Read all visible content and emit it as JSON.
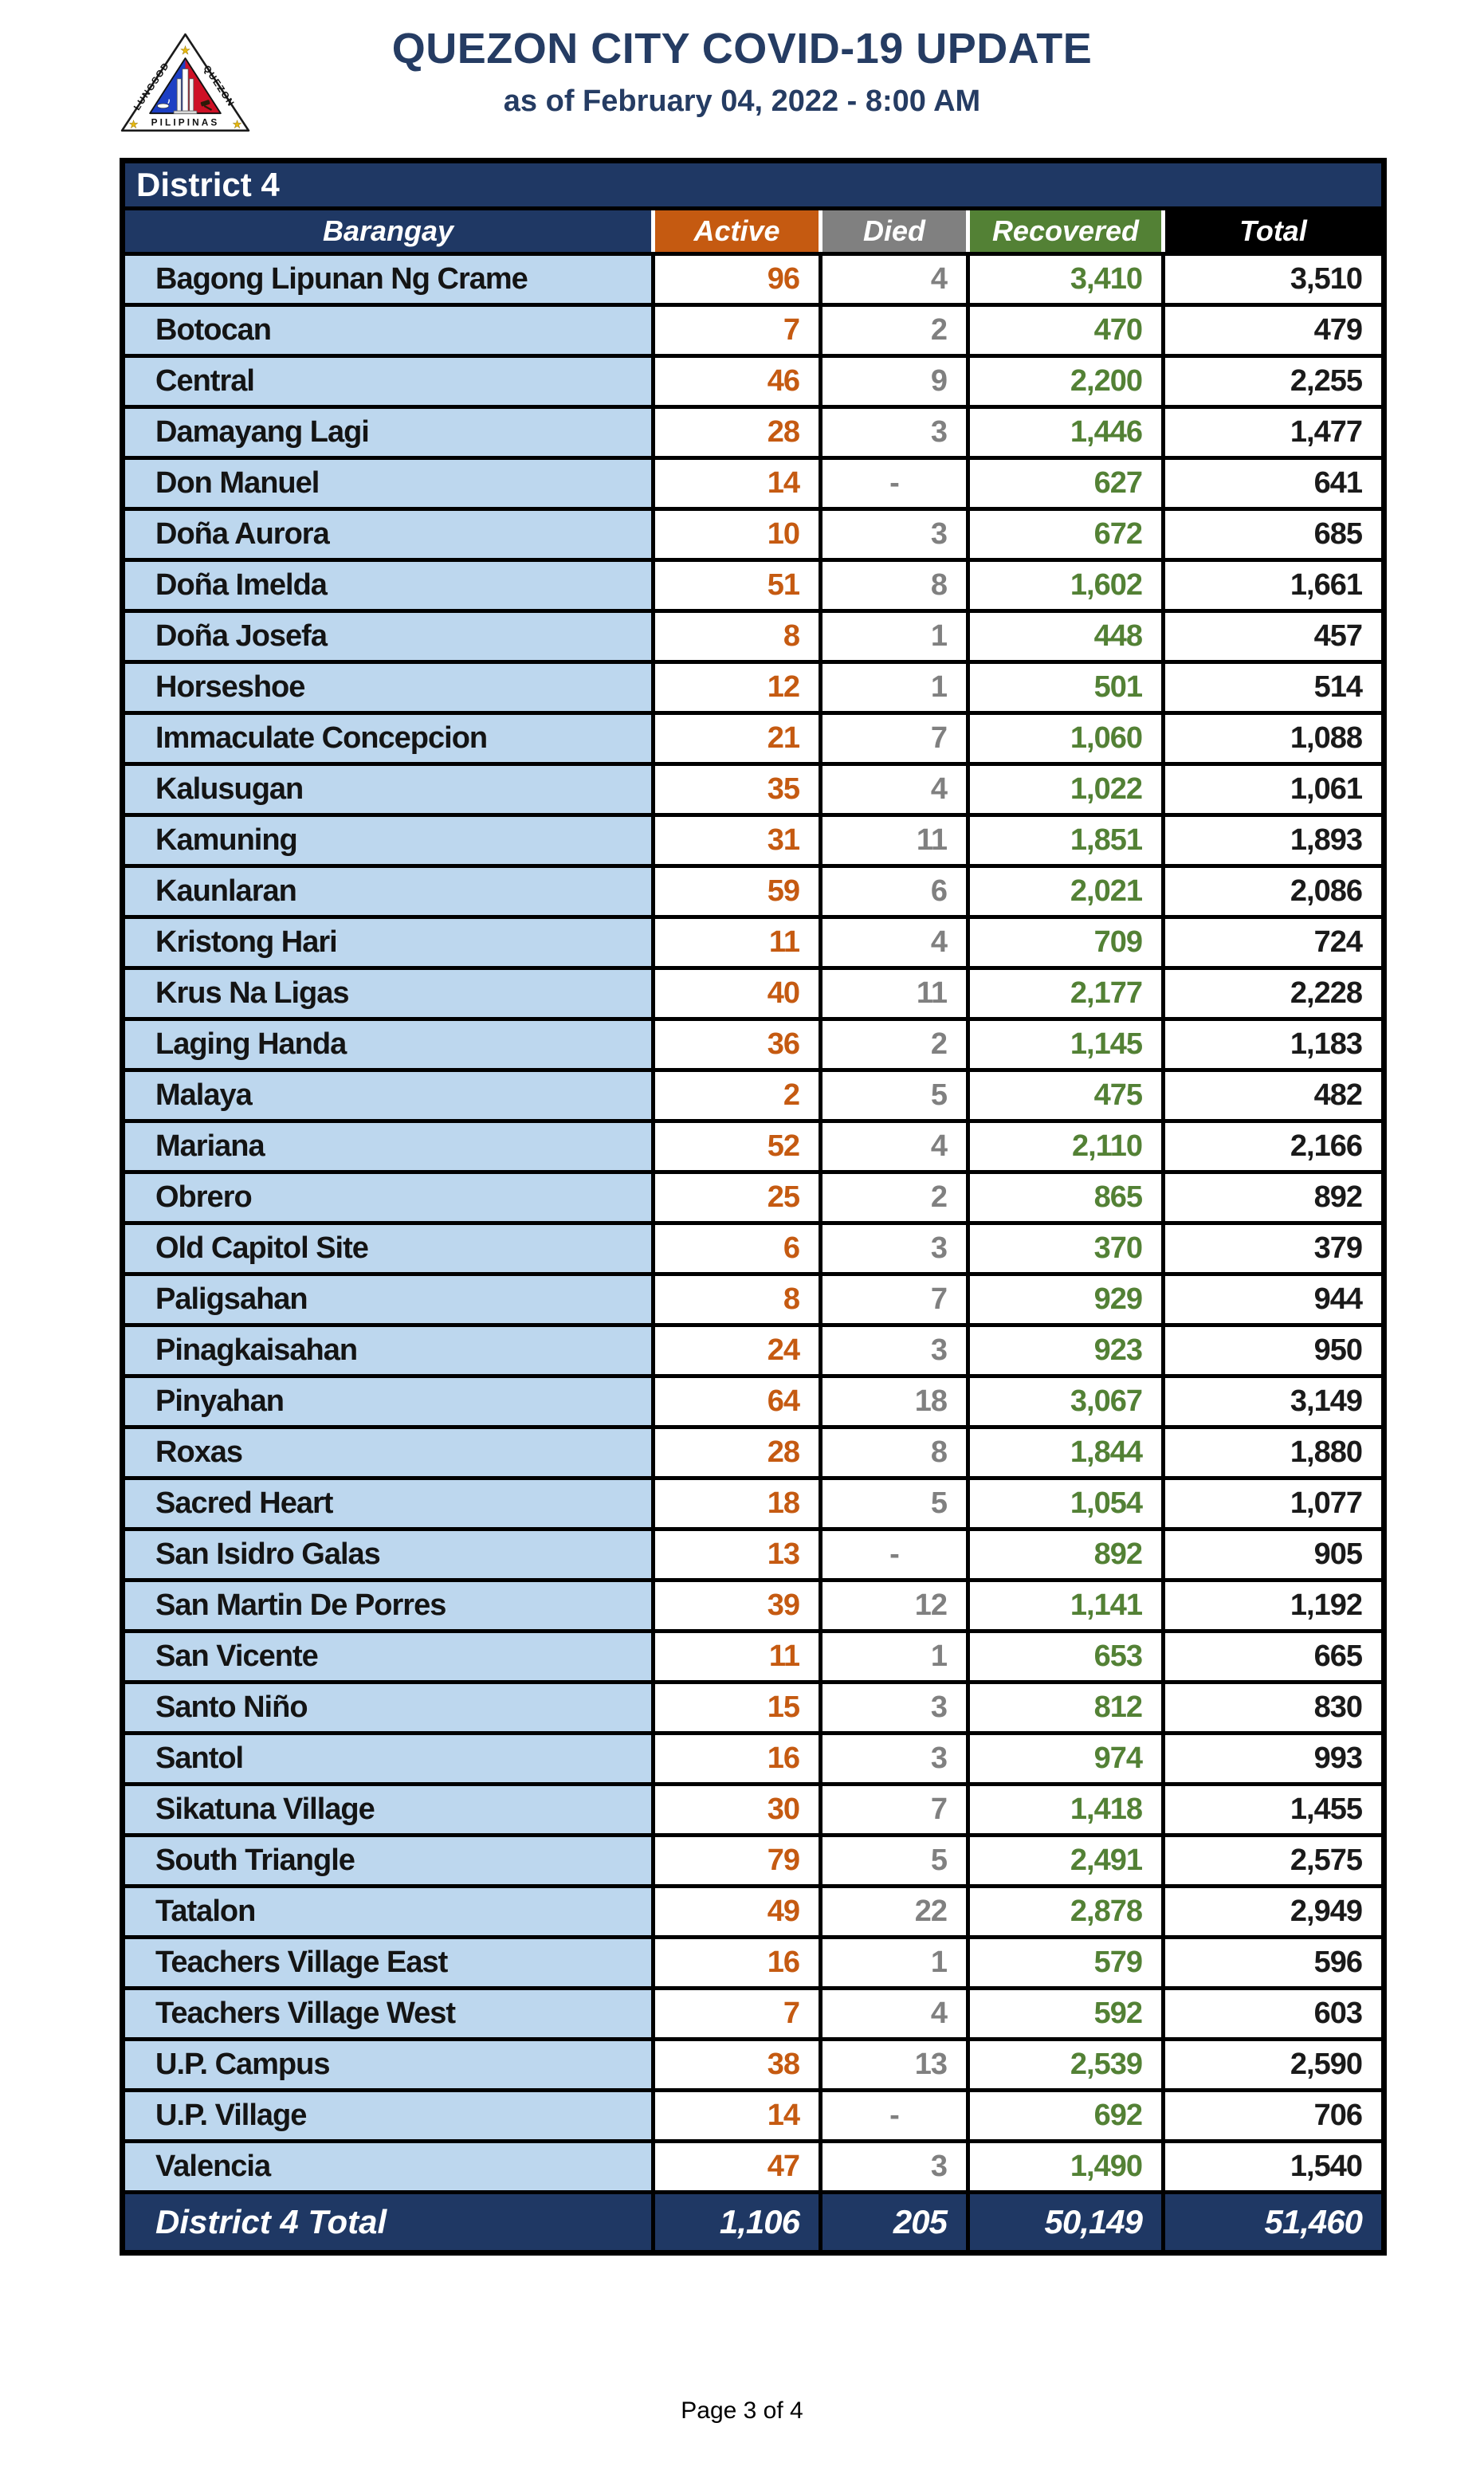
{
  "header": {
    "title": "QUEZON CITY COVID-19 UPDATE",
    "subtitle": "as of February 04, 2022 - 8:00 AM"
  },
  "logo": {
    "arc_left": "LUNGSOD",
    "arc_right": "QUEZON",
    "bottom": "PILIPINAS"
  },
  "table": {
    "district_label": "District 4",
    "columns": {
      "barangay": "Barangay",
      "active": "Active",
      "died": "Died",
      "recovered": "Recovered",
      "total": "Total"
    },
    "rows": [
      {
        "barangay": "Bagong Lipunan Ng Crame",
        "active": "96",
        "died": "4",
        "recovered": "3,410",
        "total": "3,510"
      },
      {
        "barangay": "Botocan",
        "active": "7",
        "died": "2",
        "recovered": "470",
        "total": "479"
      },
      {
        "barangay": "Central",
        "active": "46",
        "died": "9",
        "recovered": "2,200",
        "total": "2,255"
      },
      {
        "barangay": "Damayang Lagi",
        "active": "28",
        "died": "3",
        "recovered": "1,446",
        "total": "1,477"
      },
      {
        "barangay": "Don Manuel",
        "active": "14",
        "died": "-",
        "recovered": "627",
        "total": "641"
      },
      {
        "barangay": "Doña Aurora",
        "active": "10",
        "died": "3",
        "recovered": "672",
        "total": "685"
      },
      {
        "barangay": "Doña Imelda",
        "active": "51",
        "died": "8",
        "recovered": "1,602",
        "total": "1,661"
      },
      {
        "barangay": "Doña Josefa",
        "active": "8",
        "died": "1",
        "recovered": "448",
        "total": "457"
      },
      {
        "barangay": "Horseshoe",
        "active": "12",
        "died": "1",
        "recovered": "501",
        "total": "514"
      },
      {
        "barangay": "Immaculate Concepcion",
        "active": "21",
        "died": "7",
        "recovered": "1,060",
        "total": "1,088"
      },
      {
        "barangay": "Kalusugan",
        "active": "35",
        "died": "4",
        "recovered": "1,022",
        "total": "1,061"
      },
      {
        "barangay": "Kamuning",
        "active": "31",
        "died": "11",
        "recovered": "1,851",
        "total": "1,893"
      },
      {
        "barangay": "Kaunlaran",
        "active": "59",
        "died": "6",
        "recovered": "2,021",
        "total": "2,086"
      },
      {
        "barangay": "Kristong Hari",
        "active": "11",
        "died": "4",
        "recovered": "709",
        "total": "724"
      },
      {
        "barangay": "Krus Na Ligas",
        "active": "40",
        "died": "11",
        "recovered": "2,177",
        "total": "2,228"
      },
      {
        "barangay": "Laging Handa",
        "active": "36",
        "died": "2",
        "recovered": "1,145",
        "total": "1,183"
      },
      {
        "barangay": "Malaya",
        "active": "2",
        "died": "5",
        "recovered": "475",
        "total": "482"
      },
      {
        "barangay": "Mariana",
        "active": "52",
        "died": "4",
        "recovered": "2,110",
        "total": "2,166"
      },
      {
        "barangay": "Obrero",
        "active": "25",
        "died": "2",
        "recovered": "865",
        "total": "892"
      },
      {
        "barangay": "Old Capitol Site",
        "active": "6",
        "died": "3",
        "recovered": "370",
        "total": "379"
      },
      {
        "barangay": "Paligsahan",
        "active": "8",
        "died": "7",
        "recovered": "929",
        "total": "944"
      },
      {
        "barangay": "Pinagkaisahan",
        "active": "24",
        "died": "3",
        "recovered": "923",
        "total": "950"
      },
      {
        "barangay": "Pinyahan",
        "active": "64",
        "died": "18",
        "recovered": "3,067",
        "total": "3,149"
      },
      {
        "barangay": "Roxas",
        "active": "28",
        "died": "8",
        "recovered": "1,844",
        "total": "1,880"
      },
      {
        "barangay": "Sacred Heart",
        "active": "18",
        "died": "5",
        "recovered": "1,054",
        "total": "1,077"
      },
      {
        "barangay": "San Isidro Galas",
        "active": "13",
        "died": "-",
        "recovered": "892",
        "total": "905"
      },
      {
        "barangay": "San Martin De Porres",
        "active": "39",
        "died": "12",
        "recovered": "1,141",
        "total": "1,192"
      },
      {
        "barangay": "San Vicente",
        "active": "11",
        "died": "1",
        "recovered": "653",
        "total": "665"
      },
      {
        "barangay": "Santo Niño",
        "active": "15",
        "died": "3",
        "recovered": "812",
        "total": "830"
      },
      {
        "barangay": "Santol",
        "active": "16",
        "died": "3",
        "recovered": "974",
        "total": "993"
      },
      {
        "barangay": "Sikatuna Village",
        "active": "30",
        "died": "7",
        "recovered": "1,418",
        "total": "1,455"
      },
      {
        "barangay": "South Triangle",
        "active": "79",
        "died": "5",
        "recovered": "2,491",
        "total": "2,575"
      },
      {
        "barangay": "Tatalon",
        "active": "49",
        "died": "22",
        "recovered": "2,878",
        "total": "2,949"
      },
      {
        "barangay": "Teachers Village East",
        "active": "16",
        "died": "1",
        "recovered": "579",
        "total": "596"
      },
      {
        "barangay": "Teachers Village West",
        "active": "7",
        "died": "4",
        "recovered": "592",
        "total": "603"
      },
      {
        "barangay": "U.P. Campus",
        "active": "38",
        "died": "13",
        "recovered": "2,539",
        "total": "2,590"
      },
      {
        "barangay": "U.P. Village",
        "active": "14",
        "died": "-",
        "recovered": "692",
        "total": "706"
      },
      {
        "barangay": "Valencia",
        "active": "47",
        "died": "3",
        "recovered": "1,490",
        "total": "1,540"
      }
    ],
    "total_row": {
      "label": "District 4 Total",
      "active": "1,106",
      "died": "205",
      "recovered": "50,149",
      "total": "51,460"
    }
  },
  "footer": {
    "page_label": "Page 3 of 4"
  },
  "colors": {
    "navy": "#1F3864",
    "title_navy": "#253C63",
    "active_orange": "#C55A11",
    "died_gray": "#808080",
    "recovered_green": "#538135",
    "total_black": "#000000",
    "row_light_blue": "#BDD7EE",
    "seal_blue": "#1C3FC4",
    "seal_red": "#CE1126",
    "star_gold": "#E8B90F"
  }
}
